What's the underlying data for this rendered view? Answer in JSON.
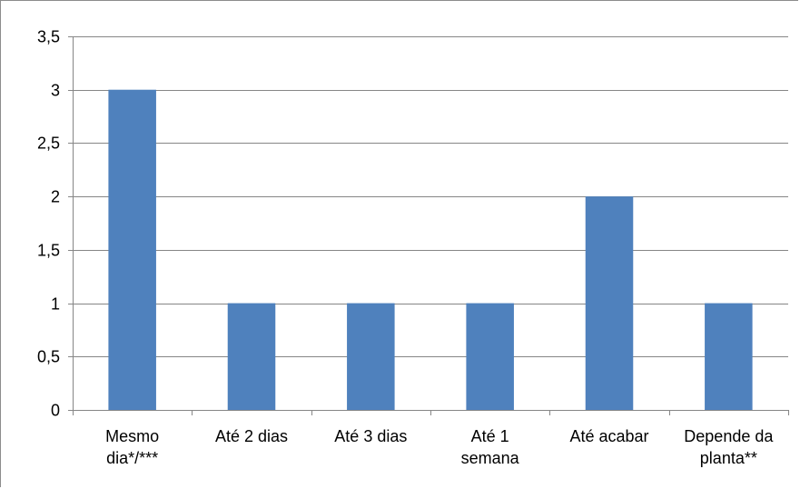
{
  "chart_data": {
    "type": "bar",
    "title": "",
    "xlabel": "",
    "ylabel": "",
    "categories": [
      [
        "Mesmo",
        "dia*/***"
      ],
      [
        "Até 2 dias"
      ],
      [
        "Até 3 dias"
      ],
      [
        "Até 1",
        "semana"
      ],
      [
        "Até acabar"
      ],
      [
        "Depende da",
        "planta**"
      ]
    ],
    "values": [
      3,
      1,
      1,
      1,
      2,
      1
    ],
    "ylim": [
      0,
      3.5
    ],
    "yticks": [
      "0",
      "0,5",
      "1",
      "1,5",
      "2",
      "2,5",
      "3",
      "3,5"
    ],
    "grid": true,
    "legend": "none",
    "bar_color": "#4f81bd"
  }
}
